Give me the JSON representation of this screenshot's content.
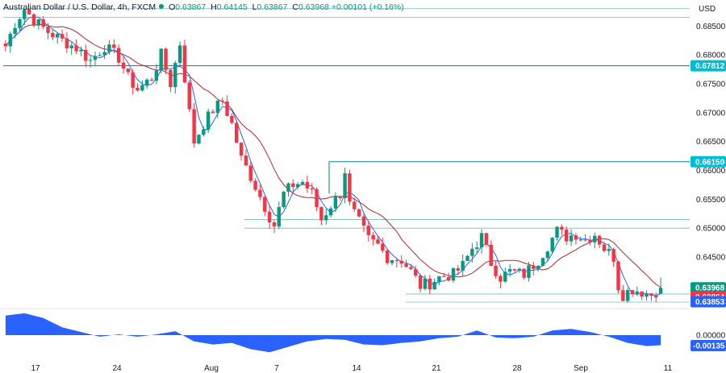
{
  "header": {
    "symbol": "Australian Dollar / U.S. Dollar, 4h, FXCM",
    "o_label": "O",
    "o_value": "0.63867",
    "h_label": "H",
    "h_value": "0.64145",
    "l_label": "L",
    "l_value": "0.63867",
    "c_label": "C",
    "c_value": "0.63968",
    "change": "+0.00101 (+0.16%)"
  },
  "currency": "USD",
  "colors": {
    "up": "#089981",
    "down": "#f23645",
    "fast_ma": "#2962ff",
    "slow_ma": "#b22833",
    "level": "#00838f",
    "tag_cyan": "#00bcd4",
    "tag_green": "#089981",
    "tag_red": "#f23645",
    "tag_blue": "#2962ff",
    "oscillator": "#2962ff"
  },
  "chart_data": {
    "type": "candlestick",
    "ylim": [
      0.6365,
      0.6895
    ],
    "y_ticks": [
      "0.68500",
      "0.68000",
      "0.67500",
      "0.67000",
      "0.66500",
      "0.66000",
      "0.65500",
      "0.65000",
      "0.64500"
    ],
    "x_ticks": [
      "17",
      "24",
      "Aug",
      "7",
      "14",
      "21",
      "28",
      "Sep",
      "11"
    ],
    "price_tags": [
      {
        "label": "0.67812",
        "value": 0.67812,
        "kind": "cyan"
      },
      {
        "label": "0.66150",
        "value": 0.6615,
        "kind": "cyan"
      },
      {
        "label": "0.63968",
        "value": 0.63968,
        "kind": "green"
      },
      {
        "label": "0.63864",
        "value": 0.63864,
        "kind": "red"
      },
      {
        "label": "0.63853",
        "value": 0.63853,
        "kind": "blue"
      }
    ],
    "oscillator_ticks": [
      "0.00000",
      "-0.00135"
    ],
    "levels": [
      {
        "value": 0.688,
        "from": "Jul 14",
        "note": "top"
      },
      {
        "value": 0.6865,
        "from": "Jul 14"
      },
      {
        "value": 0.67812,
        "from": "Jul 14"
      },
      {
        "value": 0.6615,
        "from": "Aug 11"
      },
      {
        "value": 0.6515,
        "from": "Aug 4"
      },
      {
        "value": 0.65,
        "from": "Aug 4"
      },
      {
        "value": 0.6386,
        "from": "Aug 18"
      },
      {
        "value": 0.6372,
        "from": "Aug 18"
      }
    ],
    "price_path": [
      [
        0,
        0.6815
      ],
      [
        2,
        0.6855
      ],
      [
        4,
        0.688
      ],
      [
        6,
        0.686
      ],
      [
        9,
        0.684
      ],
      [
        12,
        0.6825
      ],
      [
        15,
        0.6812
      ],
      [
        18,
        0.679
      ],
      [
        21,
        0.6815
      ],
      [
        24,
        0.6795
      ],
      [
        26,
        0.676
      ],
      [
        28,
        0.674
      ],
      [
        31,
        0.676
      ],
      [
        33,
        0.68
      ],
      [
        35,
        0.675
      ],
      [
        37,
        0.682
      ],
      [
        38,
        0.676
      ],
      [
        39,
        0.67
      ],
      [
        40,
        0.665
      ],
      [
        42,
        0.668
      ],
      [
        44,
        0.6705
      ],
      [
        46,
        0.672
      ],
      [
        48,
        0.668
      ],
      [
        50,
        0.662
      ],
      [
        52,
        0.659
      ],
      [
        54,
        0.6555
      ],
      [
        56,
        0.652
      ],
      [
        57,
        0.6505
      ],
      [
        59,
        0.656
      ],
      [
        61,
        0.6575
      ],
      [
        63,
        0.658
      ],
      [
        65,
        0.656
      ],
      [
        67,
        0.6515
      ],
      [
        69,
        0.654
      ],
      [
        71,
        0.656
      ],
      [
        72,
        0.66
      ],
      [
        73,
        0.654
      ],
      [
        75,
        0.651
      ],
      [
        77,
        0.648
      ],
      [
        79,
        0.647
      ],
      [
        81,
        0.645
      ],
      [
        84,
        0.6445
      ],
      [
        86,
        0.6425
      ],
      [
        88,
        0.64
      ],
      [
        90,
        0.6405
      ],
      [
        92,
        0.6415
      ],
      [
        95,
        0.642
      ],
      [
        97,
        0.6435
      ],
      [
        99,
        0.6465
      ],
      [
        101,
        0.6485
      ],
      [
        103,
        0.644
      ],
      [
        105,
        0.6415
      ],
      [
        107,
        0.6425
      ],
      [
        110,
        0.642
      ],
      [
        113,
        0.6445
      ],
      [
        115,
        0.647
      ],
      [
        117,
        0.6495
      ],
      [
        119,
        0.6485
      ],
      [
        121,
        0.649
      ],
      [
        123,
        0.648
      ],
      [
        125,
        0.649
      ],
      [
        127,
        0.6465
      ],
      [
        129,
        0.645
      ],
      [
        130,
        0.64
      ],
      [
        131,
        0.6385
      ],
      [
        133,
        0.6395
      ],
      [
        135,
        0.639
      ],
      [
        137,
        0.6385
      ],
      [
        139,
        0.6397
      ]
    ],
    "total_bars": 140,
    "oscillator": [
      [
        0,
        0.0025
      ],
      [
        4,
        0.0028
      ],
      [
        8,
        0.0022
      ],
      [
        12,
        0.001
      ],
      [
        16,
        0.0004
      ],
      [
        20,
        -0.0002
      ],
      [
        24,
        0.0001
      ],
      [
        28,
        -0.0002
      ],
      [
        32,
        0.0001
      ],
      [
        36,
        0.0005
      ],
      [
        40,
        -0.0008
      ],
      [
        44,
        -0.0012
      ],
      [
        48,
        -0.001
      ],
      [
        52,
        -0.0018
      ],
      [
        56,
        -0.0022
      ],
      [
        60,
        -0.0015
      ],
      [
        64,
        -0.0008
      ],
      [
        68,
        -0.0005
      ],
      [
        72,
        -0.0006
      ],
      [
        76,
        -0.0012
      ],
      [
        80,
        -0.0013
      ],
      [
        84,
        -0.001
      ],
      [
        88,
        -0.0008
      ],
      [
        92,
        -0.0004
      ],
      [
        96,
        -0.0002
      ],
      [
        100,
        0.0006
      ],
      [
        104,
        -0.0003
      ],
      [
        108,
        -0.0004
      ],
      [
        112,
        -0.0002
      ],
      [
        116,
        0.0006
      ],
      [
        120,
        0.0008
      ],
      [
        124,
        0.0004
      ],
      [
        128,
        -0.0002
      ],
      [
        132,
        -0.001
      ],
      [
        136,
        -0.0014
      ],
      [
        139,
        -0.0013
      ]
    ],
    "osc_ylim": [
      -0.003,
      0.0032
    ]
  }
}
